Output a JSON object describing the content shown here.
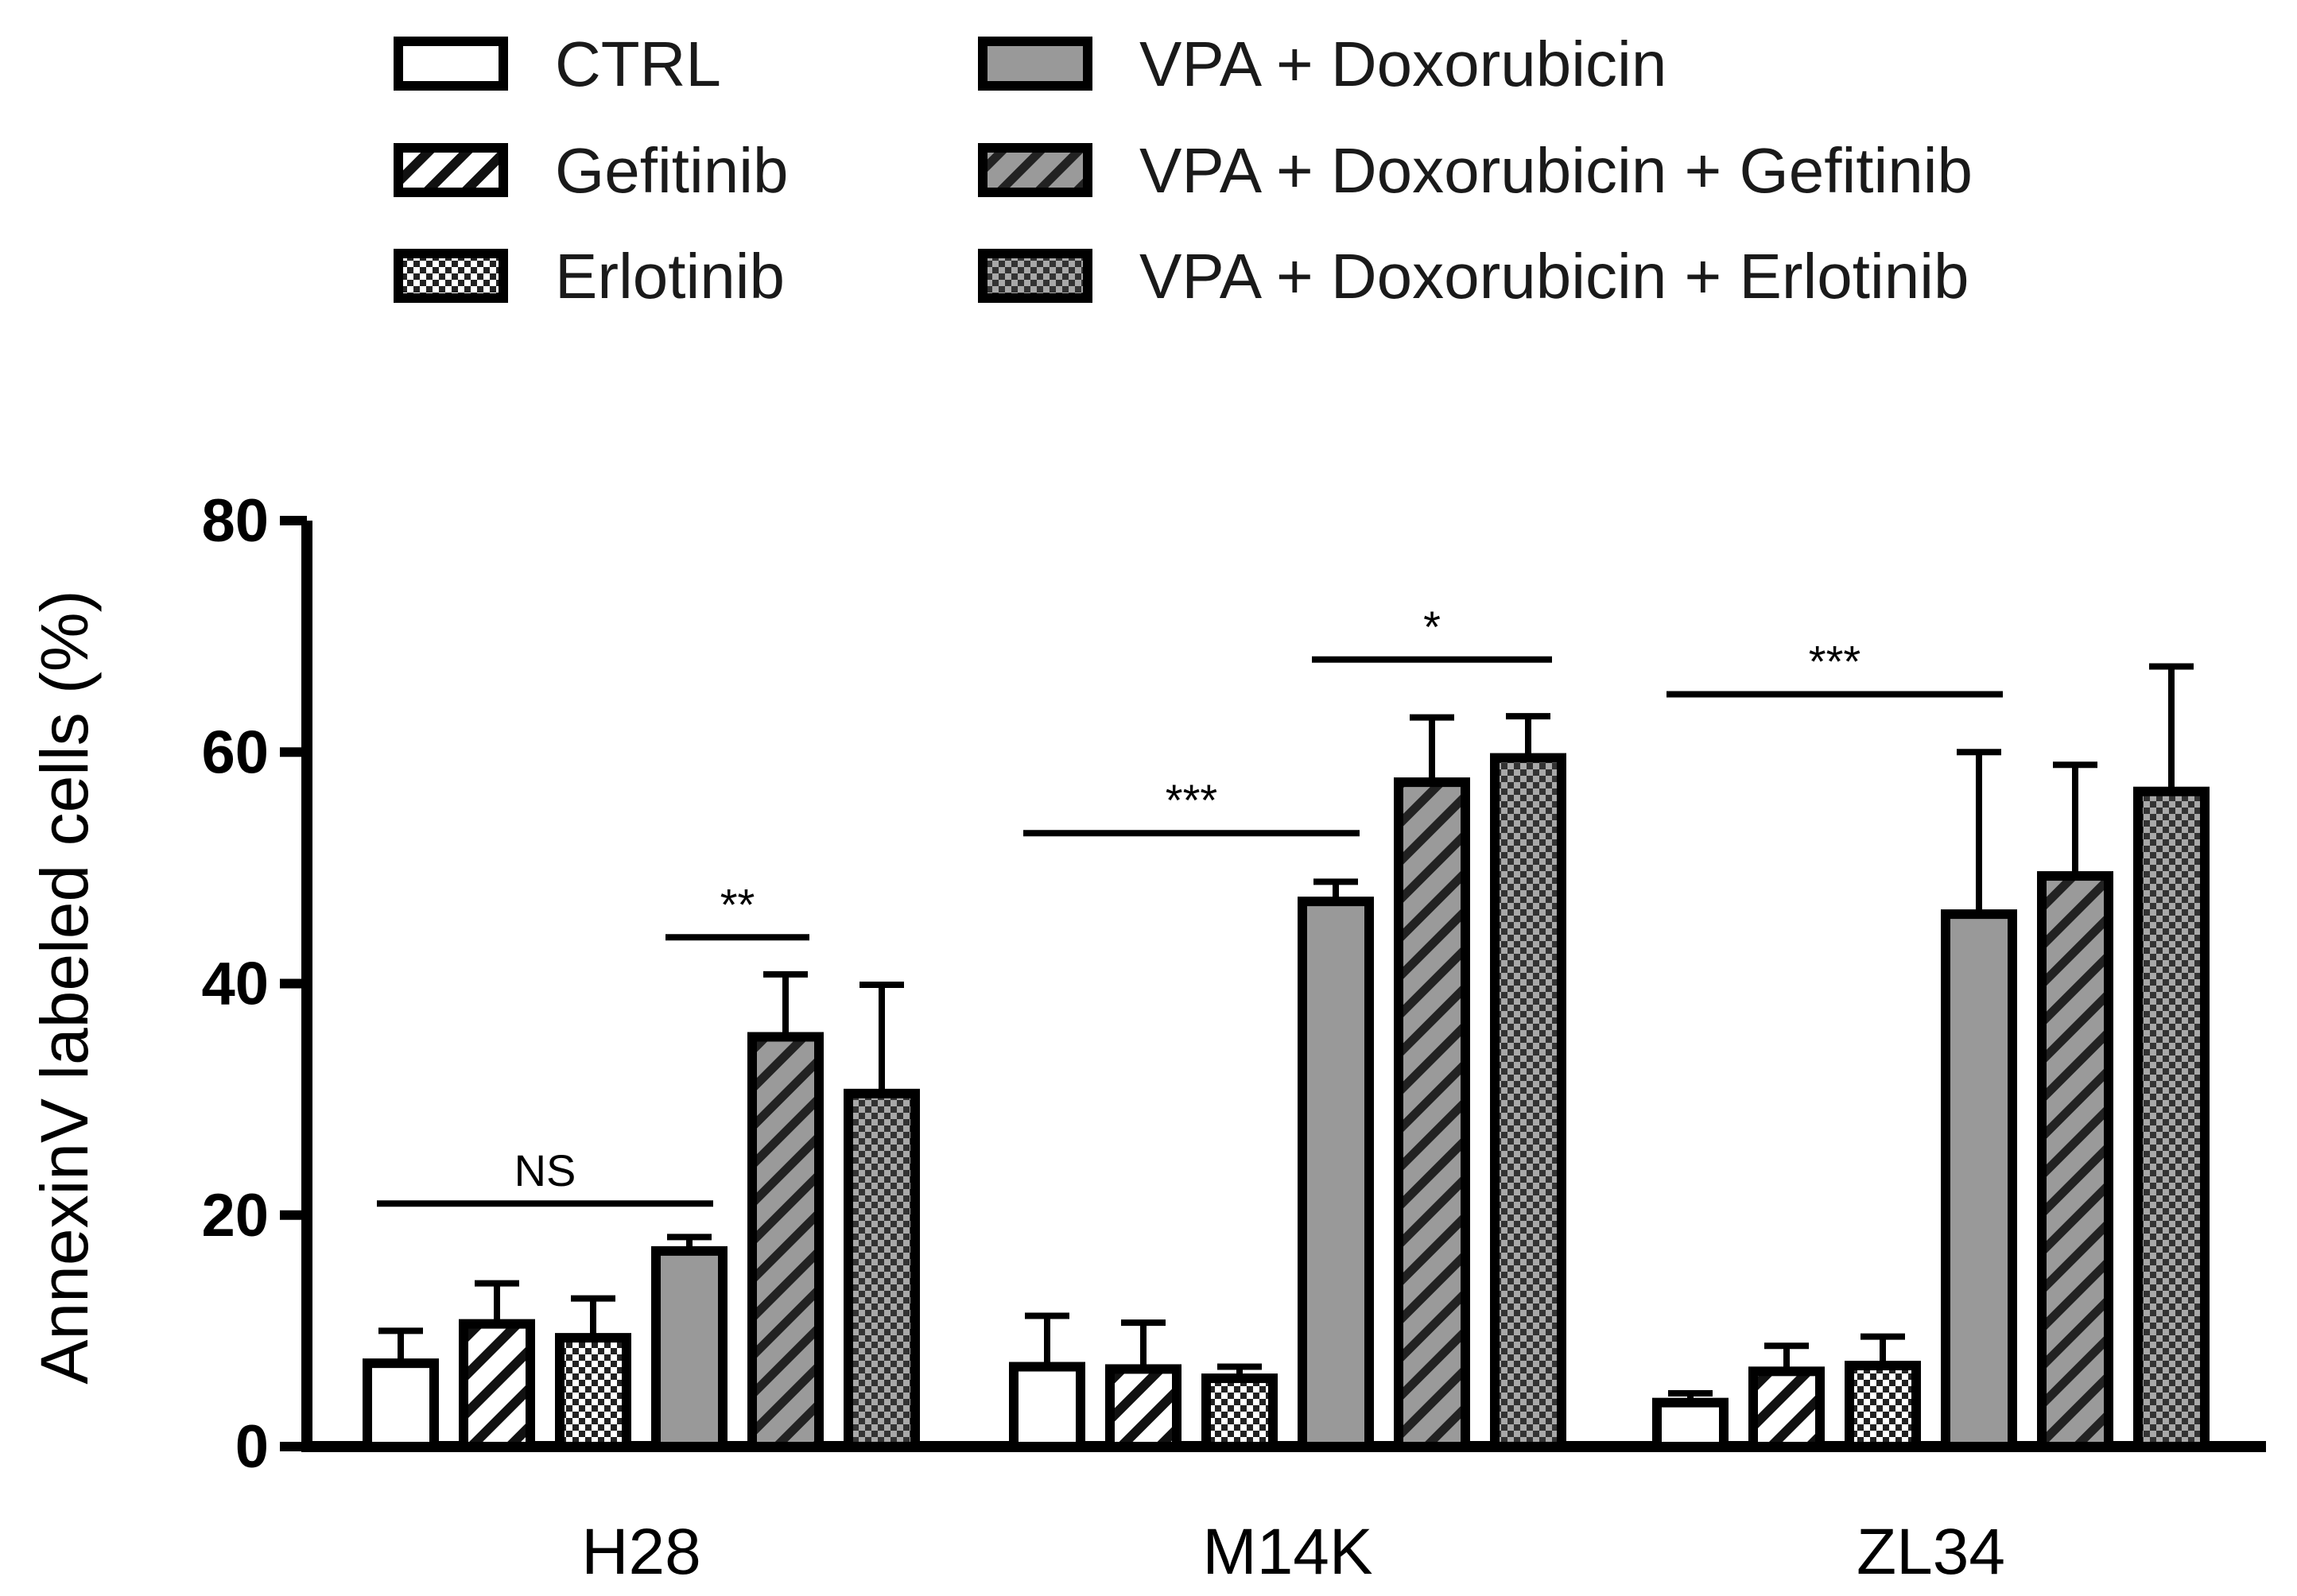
{
  "chart_data": {
    "type": "bar",
    "title": "",
    "xlabel": "",
    "ylabel": "AnnexinV labeled cells (%)",
    "ylim": [
      0,
      80
    ],
    "yticks": [
      "0",
      "20",
      "40",
      "60",
      "80"
    ],
    "categories": [
      "H28",
      "M14K",
      "ZL34"
    ],
    "series": [
      {
        "name": "CTRL",
        "fill": "white",
        "pattern": "none",
        "values": [
          7.2,
          6.9,
          3.8
        ],
        "errors": [
          2.8,
          4.4,
          0.8
        ]
      },
      {
        "name": "Gefitinib",
        "fill": "white",
        "pattern": "hatch",
        "values": [
          10.6,
          6.7,
          6.5
        ],
        "errors": [
          3.5,
          4.0,
          2.2
        ]
      },
      {
        "name": "Erlotinib",
        "fill": "white",
        "pattern": "checker",
        "values": [
          9.4,
          5.9,
          7.0
        ],
        "errors": [
          3.4,
          1.0,
          2.5
        ]
      },
      {
        "name": "VPA + Doxorubicin",
        "fill": "gray",
        "pattern": "none",
        "values": [
          16.9,
          47.1,
          46.0
        ],
        "errors": [
          1.2,
          1.7,
          14.0
        ]
      },
      {
        "name": "VPA + Doxorubicin + Gefitinib",
        "fill": "gray",
        "pattern": "hatch",
        "values": [
          35.4,
          57.4,
          49.3
        ],
        "errors": [
          5.4,
          5.6,
          9.6
        ]
      },
      {
        "name": "VPA + Doxorubicin + Erlotinib",
        "fill": "gray",
        "pattern": "checker",
        "values": [
          30.5,
          59.5,
          56.6
        ],
        "errors": [
          9.4,
          3.6,
          10.8
        ]
      }
    ],
    "significance": [
      {
        "group": 0,
        "from": 0,
        "to": 3,
        "y": 21,
        "label": "NS"
      },
      {
        "group": 0,
        "from": 3,
        "to": 4,
        "y": 44,
        "label": "**"
      },
      {
        "group": 1,
        "from": 0,
        "to": 3,
        "y": 53,
        "label": "***"
      },
      {
        "group": 1,
        "from": 3,
        "to": 5,
        "y": 68,
        "label": "*"
      },
      {
        "group": 2,
        "from": 0,
        "to": 3,
        "y": 65,
        "label": "***"
      }
    ],
    "legend_position": "top"
  }
}
